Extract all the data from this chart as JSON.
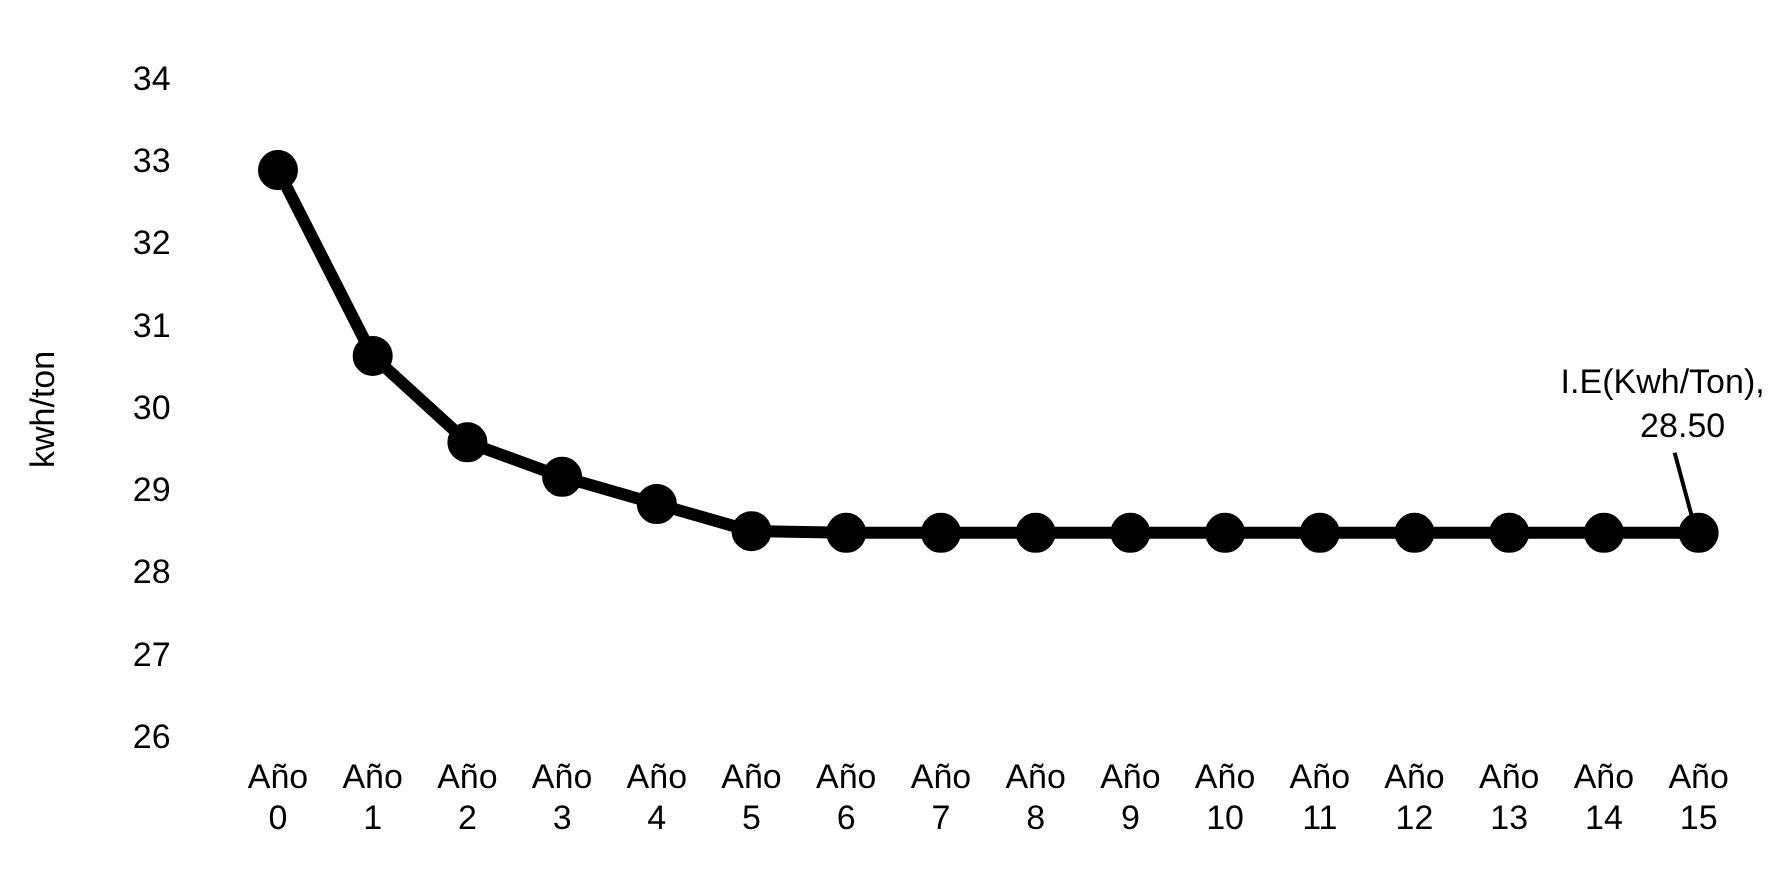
{
  "chart_data": {
    "type": "line",
    "ylabel": "kwh/ton",
    "categories": [
      "Año 0",
      "Año 1",
      "Año 2",
      "Año 3",
      "Año 4",
      "Año 5",
      "Año 6",
      "Año 7",
      "Año 8",
      "Año 9",
      "Año 10",
      "Año 11",
      "Año 12",
      "Año 13",
      "Año 14",
      "Año 15"
    ],
    "series": [
      {
        "color": "#000000",
        "values": [
          32.91,
          30.65,
          29.6,
          29.18,
          28.85,
          28.52,
          28.5,
          28.5,
          28.5,
          28.5,
          28.5,
          28.5,
          28.5,
          28.5,
          28.5,
          28.5
        ]
      }
    ],
    "ylim": [
      26,
      34
    ],
    "yticks": [
      26,
      27,
      28,
      29,
      30,
      31,
      32,
      33,
      34
    ],
    "annotations": [
      {
        "text": "I.E(Kwh/Ton), 28.50",
        "x": "Año 15",
        "y": 28.5
      }
    ],
    "marker": "circle",
    "line_style": "solid",
    "grid": false,
    "legend": false
  }
}
